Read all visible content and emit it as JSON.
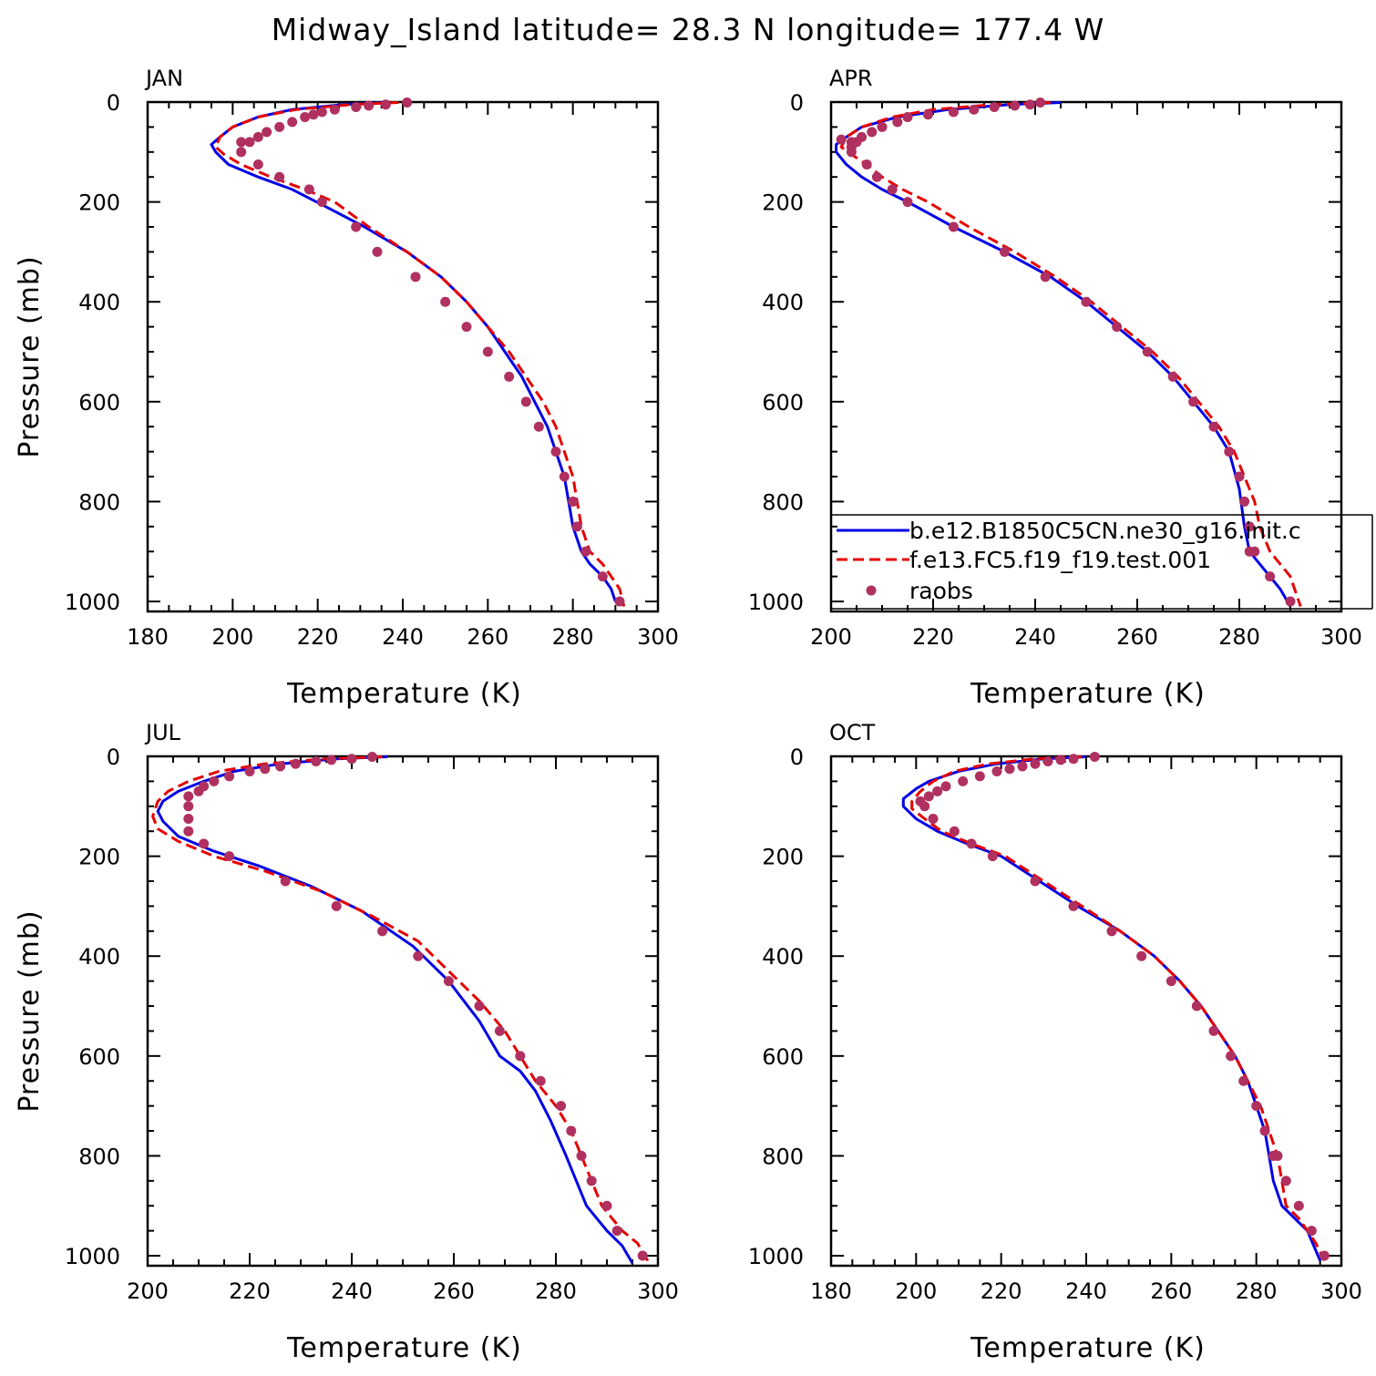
{
  "title": "Midway_Island   latitude= 28.3 N longitude= 177.4 W",
  "colors": {
    "model_b": "#0000e6",
    "model_f": "#e60000",
    "raobs": "#b03060"
  },
  "chart_data": [
    {
      "type": "line",
      "label": "JAN",
      "xlabel": "Temperature (K)",
      "ylabel": "Pressure (mb)",
      "xlim": [
        180,
        300
      ],
      "ylim": [
        0,
        1020
      ],
      "x_ticks": [
        180,
        200,
        220,
        240,
        260,
        280,
        300
      ],
      "y_ticks": [
        0,
        200,
        400,
        600,
        800,
        1000
      ],
      "series": [
        {
          "key": "model_b",
          "style": "solid",
          "x": [
            236,
            226,
            214,
            206,
            200,
            197,
            195,
            196,
            199,
            206,
            214,
            222,
            231,
            241,
            249,
            255,
            260,
            264,
            268,
            271,
            274,
            276,
            278,
            279,
            280,
            282,
            284,
            287,
            289,
            290
          ],
          "y": [
            1,
            5,
            15,
            30,
            50,
            70,
            85,
            100,
            125,
            150,
            175,
            210,
            250,
            300,
            350,
            400,
            450,
            500,
            550,
            600,
            650,
            700,
            750,
            800,
            850,
            900,
            925,
            950,
            975,
            1000
          ]
        },
        {
          "key": "model_f",
          "style": "dashed",
          "x": [
            239,
            228,
            215,
            206,
            200,
            197,
            196,
            198,
            202,
            209,
            217,
            224,
            232,
            241,
            249,
            255,
            260,
            265,
            269,
            273,
            276,
            278,
            280,
            281,
            282,
            284,
            287,
            289,
            291,
            292
          ],
          "y": [
            1,
            5,
            15,
            30,
            50,
            70,
            90,
            105,
            125,
            150,
            175,
            200,
            250,
            300,
            350,
            400,
            450,
            500,
            550,
            600,
            650,
            700,
            750,
            800,
            850,
            900,
            925,
            950,
            975,
            1010
          ]
        },
        {
          "key": "raobs",
          "style": "dots",
          "x": [
            241,
            236,
            232,
            229,
            224,
            221,
            219,
            217,
            214,
            211,
            208,
            206,
            204,
            202,
            202,
            206,
            211,
            218,
            221,
            229,
            234,
            243,
            250,
            255,
            260,
            265,
            269,
            272,
            276,
            278,
            280,
            281,
            283,
            287,
            291
          ],
          "y": [
            1,
            5,
            7,
            10,
            15,
            20,
            25,
            30,
            40,
            50,
            60,
            70,
            80,
            100,
            80,
            125,
            150,
            175,
            200,
            250,
            300,
            350,
            400,
            450,
            500,
            550,
            600,
            650,
            700,
            750,
            800,
            850,
            900,
            950,
            1000
          ]
        }
      ]
    },
    {
      "type": "line",
      "label": "APR",
      "xlabel": "Temperature (K)",
      "ylabel": "",
      "xlim": [
        200,
        300
      ],
      "ylim": [
        0,
        1020
      ],
      "x_ticks": [
        200,
        220,
        240,
        260,
        280,
        300
      ],
      "y_ticks": [
        0,
        200,
        400,
        600,
        800,
        1000
      ],
      "series": [
        {
          "key": "model_b",
          "style": "solid",
          "x": [
            245,
            235,
            223,
            213,
            206,
            203,
            201,
            201,
            203,
            206,
            210,
            215,
            224,
            234,
            243,
            250,
            256,
            262,
            267,
            271,
            275,
            278,
            280,
            281,
            282,
            284,
            286,
            288,
            290
          ],
          "y": [
            1,
            5,
            15,
            30,
            50,
            70,
            85,
            100,
            125,
            150,
            175,
            200,
            250,
            300,
            350,
            400,
            450,
            500,
            550,
            600,
            650,
            700,
            775,
            850,
            900,
            925,
            950,
            975,
            1010
          ]
        },
        {
          "key": "model_f",
          "style": "dashed",
          "x": [
            243,
            232,
            220,
            212,
            206,
            203,
            202,
            204,
            207,
            210,
            214,
            219,
            227,
            236,
            244,
            251,
            257,
            263,
            268,
            272,
            276,
            279,
            281,
            283,
            284,
            286,
            288,
            290,
            292
          ],
          "y": [
            1,
            5,
            15,
            30,
            50,
            70,
            90,
            105,
            125,
            150,
            175,
            200,
            250,
            300,
            350,
            400,
            450,
            500,
            550,
            600,
            650,
            700,
            750,
            800,
            850,
            900,
            925,
            950,
            1010
          ]
        },
        {
          "key": "raobs",
          "style": "dots",
          "x": [
            241,
            239,
            236,
            232,
            228,
            224,
            219,
            215,
            213,
            210,
            208,
            206,
            205,
            204,
            202,
            204,
            204,
            207,
            209,
            212,
            215,
            224,
            234,
            242,
            250,
            256,
            262,
            267,
            271,
            275,
            278,
            280,
            281,
            282,
            282,
            283,
            286,
            290
          ],
          "y": [
            1,
            5,
            7,
            10,
            15,
            20,
            25,
            30,
            40,
            50,
            60,
            70,
            80,
            90,
            75,
            80,
            100,
            125,
            150,
            175,
            200,
            250,
            300,
            350,
            400,
            450,
            500,
            550,
            600,
            650,
            700,
            750,
            800,
            850,
            900,
            900,
            950,
            1000
          ]
        }
      ]
    },
    {
      "type": "line",
      "label": "JUL",
      "xlabel": "Temperature (K)",
      "ylabel": "Pressure (mb)",
      "xlim": [
        200,
        300
      ],
      "ylim": [
        0,
        1020
      ],
      "x_ticks": [
        200,
        220,
        240,
        260,
        280,
        300
      ],
      "y_ticks": [
        0,
        200,
        400,
        600,
        800,
        1000
      ],
      "series": [
        {
          "key": "model_b",
          "style": "solid",
          "x": [
            247,
            237,
            226,
            217,
            211,
            206,
            203,
            202,
            203,
            206,
            213,
            222,
            232,
            242,
            252,
            259,
            265,
            269,
            273,
            276,
            279,
            282,
            284,
            286,
            288,
            290,
            293,
            295
          ],
          "y": [
            1,
            5,
            15,
            30,
            50,
            70,
            90,
            110,
            130,
            160,
            190,
            220,
            260,
            310,
            380,
            450,
            530,
            600,
            630,
            670,
            730,
            800,
            850,
            900,
            925,
            950,
            980,
            1015
          ]
        },
        {
          "key": "model_f",
          "style": "dashed",
          "x": [
            246,
            235,
            223,
            214,
            208,
            204,
            202,
            201,
            202,
            206,
            213,
            223,
            234,
            244,
            253,
            259,
            265,
            270,
            273,
            276,
            280,
            283,
            285,
            287,
            289,
            291,
            293,
            296,
            298
          ],
          "y": [
            1,
            5,
            15,
            30,
            50,
            70,
            90,
            120,
            145,
            170,
            200,
            230,
            270,
            320,
            370,
            430,
            490,
            550,
            600,
            650,
            700,
            750,
            800,
            850,
            900,
            925,
            950,
            975,
            1010
          ]
        },
        {
          "key": "raobs",
          "style": "dots",
          "x": [
            244,
            240,
            236,
            233,
            229,
            226,
            223,
            220,
            216,
            213,
            211,
            210,
            208,
            208,
            208,
            208,
            211,
            216,
            227,
            237,
            246,
            253,
            259,
            265,
            269,
            273,
            277,
            281,
            283,
            285,
            287,
            290,
            292,
            297
          ],
          "y": [
            1,
            5,
            7,
            10,
            15,
            20,
            25,
            30,
            40,
            50,
            60,
            70,
            80,
            100,
            125,
            150,
            175,
            200,
            250,
            300,
            350,
            400,
            450,
            500,
            550,
            600,
            650,
            700,
            750,
            800,
            850,
            900,
            950,
            1000
          ]
        }
      ]
    },
    {
      "type": "line",
      "label": "OCT",
      "xlabel": "Temperature (K)",
      "ylabel": "",
      "xlim": [
        180,
        300
      ],
      "ylim": [
        0,
        1020
      ],
      "x_ticks": [
        180,
        200,
        220,
        240,
        260,
        280,
        300
      ],
      "y_ticks": [
        0,
        200,
        400,
        600,
        800,
        1000
      ],
      "series": [
        {
          "key": "model_b",
          "style": "solid",
          "x": [
            240,
            230,
            219,
            210,
            203,
            200,
            197,
            197,
            200,
            205,
            212,
            220,
            229,
            238,
            248,
            256,
            262,
            267,
            271,
            275,
            278,
            280,
            282,
            283,
            284,
            286,
            289,
            292,
            295
          ],
          "y": [
            1,
            5,
            15,
            30,
            50,
            65,
            85,
            100,
            125,
            150,
            175,
            200,
            250,
            300,
            350,
            400,
            450,
            500,
            550,
            600,
            650,
            700,
            750,
            800,
            850,
            900,
            925,
            950,
            1010
          ]
        },
        {
          "key": "model_f",
          "style": "dashed",
          "x": [
            239,
            228,
            217,
            209,
            204,
            201,
            199,
            199,
            202,
            206,
            213,
            221,
            230,
            239,
            248,
            256,
            262,
            267,
            271,
            275,
            278,
            281,
            283,
            285,
            286,
            287,
            290,
            292,
            294,
            296
          ],
          "y": [
            1,
            5,
            15,
            30,
            50,
            70,
            90,
            105,
            125,
            150,
            175,
            200,
            250,
            300,
            350,
            400,
            450,
            500,
            550,
            600,
            650,
            700,
            750,
            800,
            850,
            900,
            925,
            950,
            975,
            1010
          ]
        },
        {
          "key": "raobs",
          "style": "dots",
          "x": [
            242,
            237,
            234,
            231,
            228,
            225,
            222,
            219,
            215,
            211,
            207,
            205,
            203,
            201,
            202,
            204,
            209,
            213,
            218,
            228,
            237,
            246,
            253,
            260,
            266,
            270,
            274,
            277,
            280,
            282,
            284,
            285,
            287,
            290,
            293,
            296
          ],
          "y": [
            1,
            5,
            7,
            10,
            15,
            20,
            25,
            30,
            40,
            50,
            60,
            70,
            80,
            90,
            100,
            125,
            150,
            175,
            200,
            250,
            300,
            350,
            400,
            450,
            500,
            550,
            600,
            650,
            700,
            750,
            800,
            800,
            850,
            900,
            950,
            1000
          ]
        }
      ]
    }
  ],
  "legend": {
    "placement": "lower-right of APR panel",
    "entries": [
      {
        "key": "model_b",
        "style": "solid",
        "label": "b.e12.B1850C5CN.ne30_g16.init.c"
      },
      {
        "key": "model_f",
        "style": "dashed",
        "label": "f.e13.FC5.f19_f19.test.001"
      },
      {
        "key": "raobs",
        "style": "dots",
        "label": "raobs"
      }
    ]
  }
}
